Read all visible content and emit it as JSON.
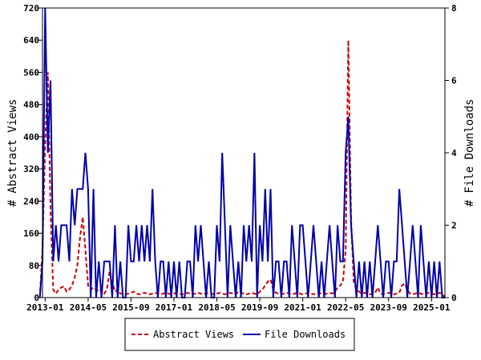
{
  "chart_data": {
    "type": "line",
    "title": "",
    "xlabel": "",
    "ylabel": "# Abstract Views",
    "y2label": "# File Downloads",
    "ylim": [
      0,
      720
    ],
    "y2lim": [
      0,
      8
    ],
    "y_ticks": [
      0,
      80,
      160,
      240,
      320,
      400,
      480,
      560,
      640,
      720
    ],
    "y2_ticks": [
      0,
      2,
      4,
      6,
      8
    ],
    "x_ticks": [
      "2013-01",
      "2014-05",
      "2015-09",
      "2017-01",
      "2018-05",
      "2019-09",
      "2021-01",
      "2022-05",
      "2023-09",
      "2025-01"
    ],
    "grid": false,
    "legend_position": "bottom",
    "series": [
      {
        "name": "Abstract Views",
        "axis": "left",
        "color": "#cc0000",
        "style": "dashed",
        "points": [
          [
            "2012-11",
            0
          ],
          [
            "2012-12",
            120
          ],
          [
            "2013-01",
            380
          ],
          [
            "2013-02",
            560
          ],
          [
            "2013-03",
            220
          ],
          [
            "2013-04",
            20
          ],
          [
            "2013-05",
            10
          ],
          [
            "2013-06",
            20
          ],
          [
            "2013-07",
            25
          ],
          [
            "2013-08",
            28
          ],
          [
            "2013-09",
            15
          ],
          [
            "2013-10",
            20
          ],
          [
            "2013-11",
            30
          ],
          [
            "2013-12",
            50
          ],
          [
            "2014-01",
            80
          ],
          [
            "2014-02",
            150
          ],
          [
            "2014-03",
            200
          ],
          [
            "2014-04",
            120
          ],
          [
            "2014-05",
            30
          ],
          [
            "2014-06",
            20
          ],
          [
            "2014-07",
            25
          ],
          [
            "2014-08",
            20
          ],
          [
            "2014-09",
            15
          ],
          [
            "2014-10",
            20
          ],
          [
            "2014-11",
            10
          ],
          [
            "2014-12",
            20
          ],
          [
            "2015-01",
            65
          ],
          [
            "2015-02",
            40
          ],
          [
            "2015-03",
            15
          ],
          [
            "2015-04",
            20
          ],
          [
            "2015-05",
            10
          ],
          [
            "2015-06",
            10
          ],
          [
            "2015-07",
            8
          ],
          [
            "2015-08",
            10
          ],
          [
            "2015-09",
            12
          ],
          [
            "2015-10",
            15
          ],
          [
            "2015-11",
            10
          ],
          [
            "2015-12",
            8
          ],
          [
            "2016-01",
            10
          ],
          [
            "2016-02",
            12
          ],
          [
            "2016-03",
            10
          ],
          [
            "2016-04",
            8
          ],
          [
            "2016-05",
            10
          ],
          [
            "2016-06",
            12
          ],
          [
            "2016-07",
            10
          ],
          [
            "2016-08",
            8
          ],
          [
            "2016-09",
            10
          ],
          [
            "2016-10",
            12
          ],
          [
            "2016-11",
            10
          ],
          [
            "2016-12",
            8
          ],
          [
            "2017-01",
            10
          ],
          [
            "2017-02",
            12
          ],
          [
            "2017-03",
            10
          ],
          [
            "2017-04",
            8
          ],
          [
            "2017-05",
            10
          ],
          [
            "2017-06",
            12
          ],
          [
            "2017-07",
            10
          ],
          [
            "2017-08",
            8
          ],
          [
            "2017-09",
            10
          ],
          [
            "2017-10",
            12
          ],
          [
            "2017-11",
            10
          ],
          [
            "2017-12",
            8
          ],
          [
            "2018-01",
            10
          ],
          [
            "2018-02",
            12
          ],
          [
            "2018-03",
            10
          ],
          [
            "2018-04",
            8
          ],
          [
            "2018-05",
            10
          ],
          [
            "2018-06",
            12
          ],
          [
            "2018-07",
            10
          ],
          [
            "2018-08",
            8
          ],
          [
            "2018-09",
            10
          ],
          [
            "2018-10",
            12
          ],
          [
            "2018-11",
            10
          ],
          [
            "2018-12",
            8
          ],
          [
            "2019-01",
            15
          ],
          [
            "2019-02",
            12
          ],
          [
            "2019-03",
            10
          ],
          [
            "2019-04",
            8
          ],
          [
            "2019-05",
            10
          ],
          [
            "2019-06",
            12
          ],
          [
            "2019-07",
            10
          ],
          [
            "2019-08",
            8
          ],
          [
            "2019-09",
            15
          ],
          [
            "2019-10",
            20
          ],
          [
            "2019-11",
            30
          ],
          [
            "2019-12",
            40
          ],
          [
            "2020-01",
            45
          ],
          [
            "2020-02",
            20
          ],
          [
            "2020-03",
            12
          ],
          [
            "2020-04",
            10
          ],
          [
            "2020-05",
            8
          ],
          [
            "2020-06",
            10
          ],
          [
            "2020-07",
            12
          ],
          [
            "2020-08",
            10
          ],
          [
            "2020-09",
            8
          ],
          [
            "2020-10",
            10
          ],
          [
            "2020-11",
            12
          ],
          [
            "2020-12",
            10
          ],
          [
            "2021-01",
            8
          ],
          [
            "2021-02",
            10
          ],
          [
            "2021-03",
            12
          ],
          [
            "2021-04",
            10
          ],
          [
            "2021-05",
            8
          ],
          [
            "2021-06",
            10
          ],
          [
            "2021-07",
            12
          ],
          [
            "2021-08",
            10
          ],
          [
            "2021-09",
            8
          ],
          [
            "2021-10",
            10
          ],
          [
            "2021-11",
            12
          ],
          [
            "2021-12",
            10
          ],
          [
            "2022-01",
            15
          ],
          [
            "2022-02",
            25
          ],
          [
            "2022-03",
            30
          ],
          [
            "2022-04",
            40
          ],
          [
            "2022-05",
            120
          ],
          [
            "2022-06",
            640
          ],
          [
            "2022-07",
            200
          ],
          [
            "2022-08",
            40
          ],
          [
            "2022-09",
            20
          ],
          [
            "2022-10",
            15
          ],
          [
            "2022-11",
            10
          ],
          [
            "2022-12",
            12
          ],
          [
            "2023-01",
            10
          ],
          [
            "2023-02",
            8
          ],
          [
            "2023-03",
            10
          ],
          [
            "2023-04",
            12
          ],
          [
            "2023-05",
            25
          ],
          [
            "2023-06",
            10
          ],
          [
            "2023-07",
            8
          ],
          [
            "2023-08",
            10
          ],
          [
            "2023-09",
            12
          ],
          [
            "2023-10",
            10
          ],
          [
            "2023-11",
            8
          ],
          [
            "2023-12",
            10
          ],
          [
            "2024-01",
            12
          ],
          [
            "2024-02",
            30
          ],
          [
            "2024-03",
            35
          ],
          [
            "2024-04",
            20
          ],
          [
            "2024-05",
            10
          ],
          [
            "2024-06",
            8
          ],
          [
            "2024-07",
            10
          ],
          [
            "2024-08",
            12
          ],
          [
            "2024-09",
            10
          ],
          [
            "2024-10",
            8
          ],
          [
            "2024-11",
            10
          ],
          [
            "2024-12",
            12
          ],
          [
            "2025-01",
            10
          ],
          [
            "2025-02",
            8
          ],
          [
            "2025-03",
            10
          ],
          [
            "2025-04",
            12
          ],
          [
            "2025-05",
            10
          ],
          [
            "2025-06",
            0
          ]
        ]
      },
      {
        "name": "File Downloads",
        "axis": "right",
        "color": "#0000aa",
        "style": "solid",
        "points": [
          [
            "2012-11",
            0
          ],
          [
            "2012-12",
            1
          ],
          [
            "2013-01",
            8
          ],
          [
            "2013-02",
            4
          ],
          [
            "2013-03",
            6
          ],
          [
            "2013-04",
            1
          ],
          [
            "2013-05",
            2
          ],
          [
            "2013-06",
            1
          ],
          [
            "2013-07",
            2
          ],
          [
            "2013-08",
            2
          ],
          [
            "2013-09",
            2
          ],
          [
            "2013-10",
            1
          ],
          [
            "2013-11",
            3
          ],
          [
            "2013-12",
            2
          ],
          [
            "2014-01",
            3
          ],
          [
            "2014-02",
            3
          ],
          [
            "2014-03",
            3
          ],
          [
            "2014-04",
            4
          ],
          [
            "2014-05",
            3
          ],
          [
            "2014-06",
            0
          ],
          [
            "2014-07",
            3
          ],
          [
            "2014-08",
            0
          ],
          [
            "2014-09",
            1
          ],
          [
            "2014-10",
            0
          ],
          [
            "2014-11",
            1
          ],
          [
            "2014-12",
            1
          ],
          [
            "2015-01",
            1
          ],
          [
            "2015-02",
            0
          ],
          [
            "2015-03",
            2
          ],
          [
            "2015-04",
            0
          ],
          [
            "2015-05",
            1
          ],
          [
            "2015-06",
            0
          ],
          [
            "2015-07",
            0
          ],
          [
            "2015-08",
            2
          ],
          [
            "2015-09",
            1
          ],
          [
            "2015-10",
            1
          ],
          [
            "2015-11",
            2
          ],
          [
            "2015-12",
            1
          ],
          [
            "2016-01",
            2
          ],
          [
            "2016-02",
            1
          ],
          [
            "2016-03",
            2
          ],
          [
            "2016-04",
            1
          ],
          [
            "2016-05",
            3
          ],
          [
            "2016-06",
            1
          ],
          [
            "2016-07",
            0
          ],
          [
            "2016-08",
            1
          ],
          [
            "2016-09",
            1
          ],
          [
            "2016-10",
            0
          ],
          [
            "2016-11",
            1
          ],
          [
            "2016-12",
            0
          ],
          [
            "2017-01",
            1
          ],
          [
            "2017-02",
            0
          ],
          [
            "2017-03",
            1
          ],
          [
            "2017-04",
            0
          ],
          [
            "2017-05",
            0
          ],
          [
            "2017-06",
            1
          ],
          [
            "2017-07",
            1
          ],
          [
            "2017-08",
            0
          ],
          [
            "2017-09",
            2
          ],
          [
            "2017-10",
            1
          ],
          [
            "2017-11",
            2
          ],
          [
            "2017-12",
            1
          ],
          [
            "2018-01",
            0
          ],
          [
            "2018-02",
            1
          ],
          [
            "2018-03",
            0
          ],
          [
            "2018-04",
            0
          ],
          [
            "2018-05",
            2
          ],
          [
            "2018-06",
            1
          ],
          [
            "2018-07",
            4
          ],
          [
            "2018-08",
            2
          ],
          [
            "2018-09",
            0
          ],
          [
            "2018-10",
            2
          ],
          [
            "2018-11",
            1
          ],
          [
            "2018-12",
            0
          ],
          [
            "2019-01",
            1
          ],
          [
            "2019-02",
            0
          ],
          [
            "2019-03",
            2
          ],
          [
            "2019-04",
            1
          ],
          [
            "2019-05",
            2
          ],
          [
            "2019-06",
            1
          ],
          [
            "2019-07",
            4
          ],
          [
            "2019-08",
            0
          ],
          [
            "2019-09",
            2
          ],
          [
            "2019-10",
            1
          ],
          [
            "2019-11",
            3
          ],
          [
            "2019-12",
            1
          ],
          [
            "2020-01",
            3
          ],
          [
            "2020-02",
            0
          ],
          [
            "2020-03",
            1
          ],
          [
            "2020-04",
            1
          ],
          [
            "2020-05",
            0
          ],
          [
            "2020-06",
            1
          ],
          [
            "2020-07",
            1
          ],
          [
            "2020-08",
            0
          ],
          [
            "2020-09",
            2
          ],
          [
            "2020-10",
            1
          ],
          [
            "2020-11",
            0
          ],
          [
            "2020-12",
            2
          ],
          [
            "2021-01",
            2
          ],
          [
            "2021-02",
            1
          ],
          [
            "2021-03",
            0
          ],
          [
            "2021-04",
            1
          ],
          [
            "2021-05",
            2
          ],
          [
            "2021-06",
            1
          ],
          [
            "2021-07",
            0
          ],
          [
            "2021-08",
            1
          ],
          [
            "2021-09",
            0
          ],
          [
            "2021-10",
            1
          ],
          [
            "2021-11",
            2
          ],
          [
            "2021-12",
            1
          ],
          [
            "2022-01",
            0
          ],
          [
            "2022-02",
            2
          ],
          [
            "2022-03",
            1
          ],
          [
            "2022-04",
            1
          ],
          [
            "2022-05",
            4
          ],
          [
            "2022-06",
            5
          ],
          [
            "2022-07",
            2
          ],
          [
            "2022-08",
            1
          ],
          [
            "2022-09",
            0
          ],
          [
            "2022-10",
            1
          ],
          [
            "2022-11",
            0
          ],
          [
            "2022-12",
            1
          ],
          [
            "2023-01",
            0
          ],
          [
            "2023-02",
            1
          ],
          [
            "2023-03",
            0
          ],
          [
            "2023-04",
            1
          ],
          [
            "2023-05",
            2
          ],
          [
            "2023-06",
            1
          ],
          [
            "2023-07",
            0
          ],
          [
            "2023-08",
            1
          ],
          [
            "2023-09",
            1
          ],
          [
            "2023-10",
            0
          ],
          [
            "2023-11",
            1
          ],
          [
            "2023-12",
            1
          ],
          [
            "2024-01",
            3
          ],
          [
            "2024-02",
            2
          ],
          [
            "2024-03",
            1
          ],
          [
            "2024-04",
            0
          ],
          [
            "2024-05",
            1
          ],
          [
            "2024-06",
            2
          ],
          [
            "2024-07",
            1
          ],
          [
            "2024-08",
            0
          ],
          [
            "2024-09",
            2
          ],
          [
            "2024-10",
            1
          ],
          [
            "2024-11",
            0
          ],
          [
            "2024-12",
            1
          ],
          [
            "2025-01",
            0
          ],
          [
            "2025-02",
            1
          ],
          [
            "2025-03",
            0
          ],
          [
            "2025-04",
            1
          ],
          [
            "2025-05",
            0
          ],
          [
            "2025-06",
            0
          ]
        ]
      }
    ]
  }
}
